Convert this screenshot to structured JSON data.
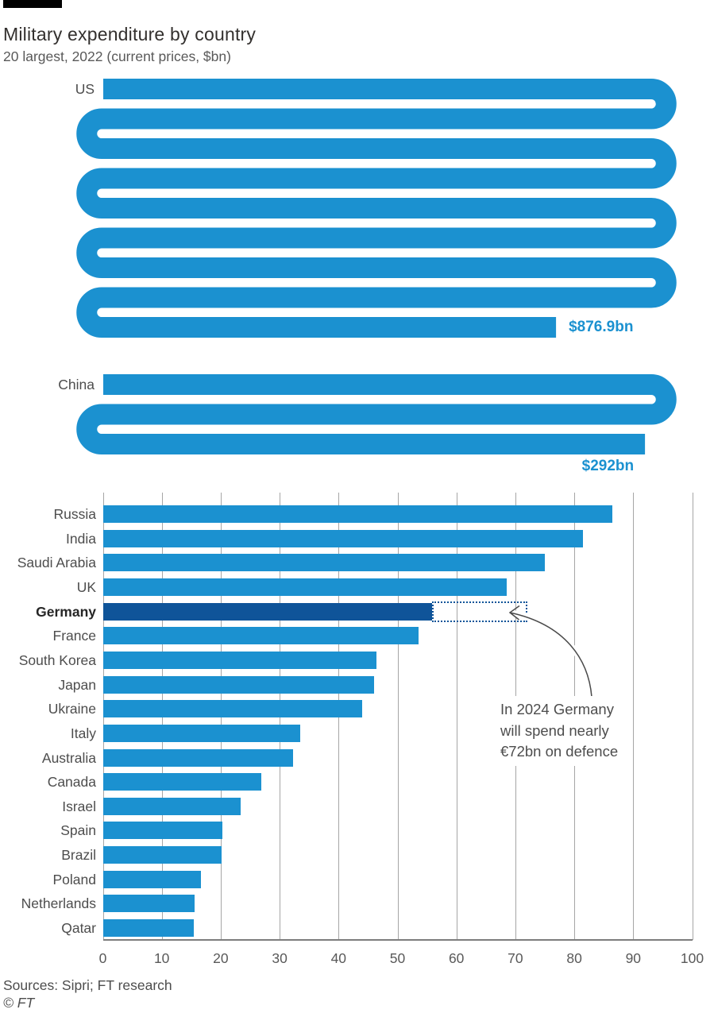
{
  "header": {
    "title": "Military expenditure by country",
    "subtitle": "20 largest, 2022 (current prices, $bn)"
  },
  "chart_data": {
    "type": "bar",
    "orientation": "horizontal",
    "title": "Military expenditure by country",
    "subtitle": "20 largest, 2022 (current prices, $bn)",
    "unit": "$bn",
    "xlim": [
      0,
      100
    ],
    "ticks": [
      0,
      10,
      20,
      30,
      40,
      50,
      60,
      70,
      80,
      90,
      100
    ],
    "grid": true,
    "wrapped_series": [
      {
        "country": "US",
        "value": 876.9,
        "label": "$876.9bn"
      },
      {
        "country": "China",
        "value": 292,
        "label": "$292bn"
      }
    ],
    "categories": [
      "Russia",
      "India",
      "Saudi Arabia",
      "UK",
      "Germany",
      "France",
      "South Korea",
      "Japan",
      "Ukraine",
      "Italy",
      "Australia",
      "Canada",
      "Israel",
      "Spain",
      "Brazil",
      "Poland",
      "Netherlands",
      "Qatar"
    ],
    "values": [
      86.4,
      81.4,
      75.0,
      68.5,
      55.8,
      53.6,
      46.4,
      46.0,
      44.0,
      33.5,
      32.3,
      26.9,
      23.4,
      20.3,
      20.2,
      16.6,
      15.6,
      15.4
    ],
    "highlight_country": "Germany",
    "annotation": {
      "text_lines": [
        "In 2024 Germany",
        "will spend nearly",
        "€72bn on defence"
      ],
      "box_from_value": 55.8,
      "box_to_value": 72
    },
    "colors": {
      "bar_blue": "#1b91d0",
      "highlight_blue": "#0f5499",
      "grid_gray": "#a6a6a6",
      "baseline_gray": "#7d7d7d",
      "value_label_blue": "#1b91d0",
      "annotation_gray": "#4d4d4d"
    }
  },
  "footer": {
    "sources": "Sources: Sipri; FT research",
    "credit": "© FT"
  }
}
